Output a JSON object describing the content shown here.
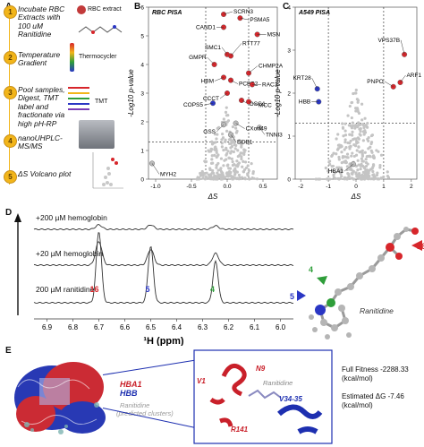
{
  "panel_labels": {
    "a": "A",
    "b": "B",
    "c": "C",
    "d": "D",
    "e": "E"
  },
  "workflow": {
    "steps": [
      {
        "n": "1",
        "text": [
          "Incubate RBC",
          "Extracts with",
          "100 uM",
          "Ranitidine"
        ]
      },
      {
        "n": "2",
        "text": [
          "Temperature",
          "Gradient"
        ]
      },
      {
        "n": "3",
        "text": [
          "Pool samples,",
          "Digest, TMT",
          "label and",
          "fractionate via",
          "high pH-RP"
        ]
      },
      {
        "n": "4",
        "text": [
          "nanoUHPLC-",
          "MS/MS"
        ]
      },
      {
        "n": "5",
        "text": [
          "ΔS Volcano plot"
        ]
      }
    ],
    "rbc_extract": "RBC extract",
    "thermocycler": "Thermocycler",
    "tmt": "TMT"
  },
  "chart_data": [
    {
      "type": "scatter",
      "title": "RBC PISA",
      "xlabel": "ΔS",
      "ylabel": "-Log10 p-value",
      "xlim": [
        -1.1,
        0.7
      ],
      "ylim": [
        0,
        6
      ],
      "xticks": [
        "-1.0",
        "-0.5",
        "0.0",
        "0.5"
      ],
      "yticks": [
        "0",
        "1",
        "2",
        "3",
        "4",
        "5",
        "6"
      ],
      "threshold_lines": {
        "x": [
          -0.3,
          0.3
        ],
        "y": 1.3
      },
      "highlighted": [
        {
          "label": "SCRN3",
          "x": -0.05,
          "y": 5.75,
          "color": "#d7262b"
        },
        {
          "label": "PSMA5",
          "x": 0.18,
          "y": 5.62,
          "color": "#d7262b"
        },
        {
          "label": "MSN",
          "x": 0.42,
          "y": 5.05,
          "color": "#d7262b"
        },
        {
          "label": "CAND1",
          "x": -0.05,
          "y": 5.3,
          "color": "#d7262b"
        },
        {
          "label": "SMC1",
          "x": 0.0,
          "y": 4.35,
          "color": "#d7262b"
        },
        {
          "label": "RTT77",
          "x": 0.05,
          "y": 4.3,
          "color": "#d7262b"
        },
        {
          "label": "GMPR",
          "x": -0.18,
          "y": 4.0,
          "color": "#d7262b"
        },
        {
          "label": "HBM",
          "x": -0.05,
          "y": 3.55,
          "color": "#d7262b"
        },
        {
          "label": "PCBP2",
          "x": 0.05,
          "y": 3.45,
          "color": "#d7262b"
        },
        {
          "label": "CHMP2A",
          "x": 0.3,
          "y": 3.7,
          "color": "#d7262b"
        },
        {
          "label": "RAC3",
          "x": 0.35,
          "y": 3.3,
          "color": "#d7262b"
        },
        {
          "label": "COPS5",
          "x": -0.2,
          "y": 2.65,
          "color": "#2a36c4"
        },
        {
          "label": "CCCT",
          "x": 0.0,
          "y": 3.0,
          "color": "#d7262b"
        },
        {
          "label": "DSG1",
          "x": 0.2,
          "y": 2.75,
          "color": "#d7262b"
        },
        {
          "label": "MCC",
          "x": 0.3,
          "y": 2.7,
          "color": "#d7262b"
        },
        {
          "label": "TNNI3",
          "x": 0.45,
          "y": 1.8,
          "color": "#bbbbbb"
        },
        {
          "label": "GSS",
          "x": -0.05,
          "y": 1.9,
          "color": "#bbbbbb"
        },
        {
          "label": "CXorf49",
          "x": 0.12,
          "y": 1.95,
          "color": "#bbbbbb"
        },
        {
          "label": "DDB1",
          "x": 0.05,
          "y": 1.55,
          "color": "#bbbbbb"
        },
        {
          "label": "MYH2",
          "x": -1.05,
          "y": 0.55,
          "color": "#bbbbbb"
        }
      ]
    },
    {
      "type": "scatter",
      "title": "A549 PISA",
      "xlabel": "ΔS",
      "ylabel": "-Log10 p-value",
      "xlim": [
        -2.2,
        2.2
      ],
      "ylim": [
        0,
        4
      ],
      "xticks": [
        "-2",
        "-1",
        "0",
        "1",
        "2"
      ],
      "yticks": [
        "0",
        "1",
        "2",
        "3",
        "4"
      ],
      "threshold_lines": {
        "x": [
          -1,
          1
        ],
        "y": 1.3
      },
      "highlighted": [
        {
          "label": "VPS37B",
          "x": 1.75,
          "y": 2.9,
          "color": "#d7262b"
        },
        {
          "label": "PNPO",
          "x": 1.35,
          "y": 2.15,
          "color": "#d7262b"
        },
        {
          "label": "ARF1",
          "x": 1.6,
          "y": 2.25,
          "color": "#d7262b"
        },
        {
          "label": "KRT28",
          "x": -1.4,
          "y": 2.1,
          "color": "#2a36c4"
        },
        {
          "label": "HBB",
          "x": -1.35,
          "y": 1.8,
          "color": "#2a36c4"
        },
        {
          "label": "HBA1",
          "x": -0.1,
          "y": 0.35,
          "color": "#bbbbbb"
        }
      ]
    },
    {
      "type": "line",
      "xlabel": "¹H (ppm)",
      "xlim": [
        6.95,
        5.95
      ],
      "xticks": [
        "6.9",
        "6.8",
        "6.7",
        "6.6",
        "6.5",
        "6.4",
        "6.3",
        "6.2",
        "6.1",
        "6.0"
      ],
      "series": [
        {
          "name": "+200 µM hemoglobin",
          "peaks": [
            {
              "ppm": 6.7,
              "h": 0.25
            },
            {
              "ppm": 6.5,
              "h": 0.25
            },
            {
              "ppm": 6.25,
              "h": 0.2
            }
          ]
        },
        {
          "name": "+20 µM hemoglobin",
          "peaks": [
            {
              "ppm": 6.7,
              "h": 0.6
            },
            {
              "ppm": 6.5,
              "h": 0.4
            },
            {
              "ppm": 6.25,
              "h": 0.3
            }
          ]
        },
        {
          "name": "200 µM ranitidine",
          "peaks": [
            {
              "ppm": 6.7,
              "h": 0.95
            },
            {
              "ppm": 6.5,
              "h": 0.75
            },
            {
              "ppm": 6.25,
              "h": 0.55
            }
          ]
        }
      ],
      "peak_labels": [
        {
          "text": "16",
          "ppm": 6.7,
          "color": "#d7262b"
        },
        {
          "text": "5",
          "ppm": 6.5,
          "color": "#2a36c4"
        },
        {
          "text": "4",
          "ppm": 6.25,
          "color": "#2f9e3a"
        }
      ]
    }
  ],
  "ranitidine": {
    "label": "Ranitidine",
    "atoms": {
      "n16": "16",
      "n4": "4",
      "n5": "5"
    }
  },
  "panel_e": {
    "hba1": "HBA1",
    "hbb": "HBB",
    "ranitidine_clusters": "Ranitidine",
    "predicted": "(predicted clusters)",
    "zoom": {
      "n9": "N9",
      "v1": "V1",
      "ranitidine": "Ranitidine",
      "v3435": "V34-35",
      "r141": "R141"
    },
    "full_fitness_label": "Full Fitness",
    "full_fitness_value": "-2288.33",
    "full_fitness_unit": "(kcal/mol)",
    "dg_label": "Estimated ΔG",
    "dg_value": "-7.46",
    "dg_unit": "(kcal/mol)"
  },
  "colors": {
    "red": "#d7262b",
    "blue": "#2a36c4",
    "green": "#2f9e3a",
    "grey": "#bbbbbb",
    "gold": "#f2b51a"
  }
}
